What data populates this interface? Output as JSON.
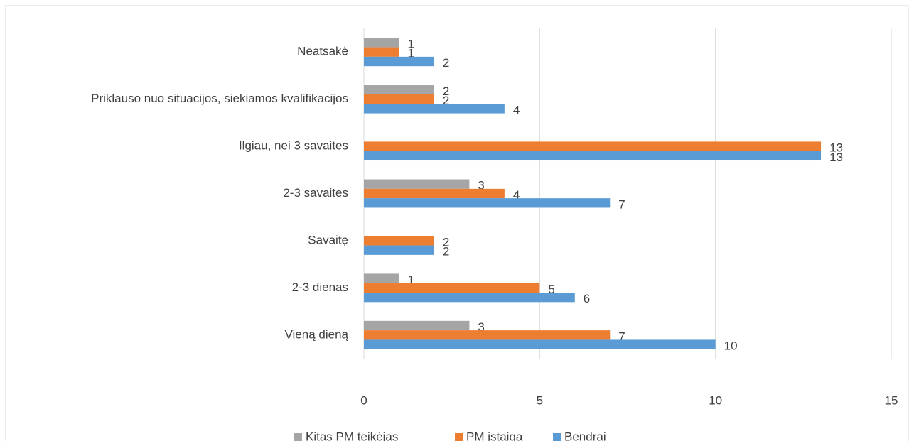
{
  "chart_data": {
    "type": "hbar",
    "categories": [
      "Neatsakė",
      "Priklauso nuo situacijos, siekiamos kvalifikacijos",
      "Ilgiau, nei 3 savaites",
      "2-3 savaites",
      "Savaitę",
      "2-3 dienas",
      "Vieną dieną"
    ],
    "series": [
      {
        "name": "Kitas PM teikėjas",
        "color": "#a5a5a5",
        "values": [
          1,
          2,
          null,
          3,
          null,
          1,
          3
        ]
      },
      {
        "name": "PM įstaiga",
        "color": "#ed7d31",
        "values": [
          1,
          2,
          13,
          4,
          2,
          5,
          7
        ]
      },
      {
        "name": "Bendrai",
        "color": "#5b9bd5",
        "values": [
          2,
          4,
          13,
          7,
          2,
          6,
          10
        ]
      }
    ],
    "xlim": [
      0,
      15
    ],
    "xticks": [
      0,
      5,
      10,
      15
    ],
    "grid": true,
    "legend": "bottom"
  }
}
